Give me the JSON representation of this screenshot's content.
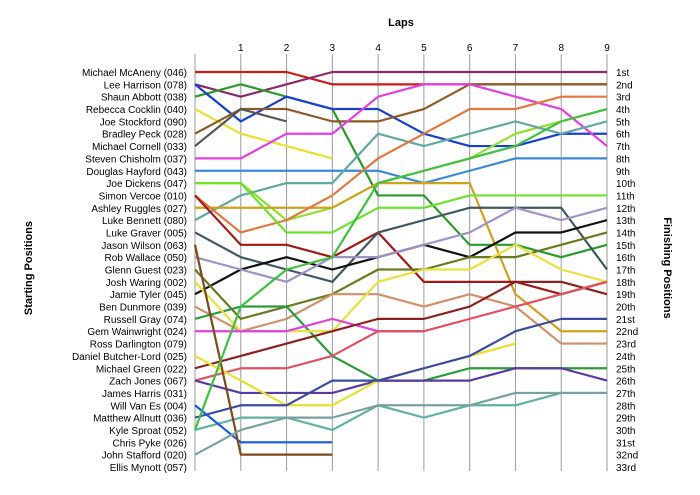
{
  "chart_data": {
    "type": "line",
    "title": "",
    "xlabel": "Laps",
    "ylabel": "Starting Positions",
    "y2label": "Finishing Positions",
    "x": [
      0,
      1,
      2,
      3,
      4,
      5,
      6,
      7,
      8,
      9
    ],
    "xticks": [
      "1",
      "2",
      "3",
      "4",
      "5",
      "6",
      "7",
      "8",
      "9"
    ],
    "xlim": [
      0,
      9
    ],
    "ylim": [
      1,
      33
    ],
    "y_inverted": true,
    "starting_labels": [
      "Michael McAneny (046)",
      "Lee Harrison (078)",
      "Shaun Abbott (038)",
      "Rebecca Cocklin (040)",
      "Joe Stockford (090)",
      "Bradley Peck (028)",
      "Michael Cornell (033)",
      "Steven Chisholm (037)",
      "Douglas Hayford (043)",
      "Joe Dickens (047)",
      "Simon Vercoe (010)",
      "Ashley Ruggles (027)",
      "Luke Bennett (080)",
      "Luke Graver (005)",
      "Jason Wilson (063)",
      "Rob Wallace (050)",
      "Glenn Guest (023)",
      "Josh Waring (002)",
      "Jamie Tyler (045)",
      "Ben Dunmore (039)",
      "Russell Gray (074)",
      "Gem Wainwright (024)",
      "Ross Darlington (079)",
      "Daniel Butcher-Lord (025)",
      "Michael Green (022)",
      "Zach Jones (067)",
      "James Harris (031)",
      "Will Van Es (004)",
      "Matthew Allnutt (036)",
      "Kyle Sproat (052)",
      "Chris Pyke (026)",
      "John Stafford (020)",
      "Ellis Mynott (057)"
    ],
    "finishing_labels": [
      "1st",
      "2nd",
      "3rd",
      "4th",
      "5th",
      "6th",
      "7th",
      "8th",
      "9th",
      "10th",
      "11th",
      "12th",
      "13th",
      "14th",
      "15th",
      "16th",
      "17th",
      "18th",
      "19th",
      "20th",
      "21st",
      "22nd",
      "23rd",
      "24th",
      "25th",
      "26th",
      "27th",
      "28th",
      "29th",
      "30th",
      "31st",
      "32nd",
      "33rd"
    ],
    "series": [
      {
        "color": "#cc1a1a",
        "values": [
          1,
          1,
          1,
          2,
          2,
          2,
          2,
          2,
          2,
          2
        ]
      },
      {
        "color": "#8a2a6b",
        "values": [
          2,
          3,
          2,
          1,
          1,
          1,
          1,
          1,
          1,
          1
        ]
      },
      {
        "color": "#2a9a2a",
        "values": [
          3,
          2,
          3,
          4,
          11,
          11,
          15,
          15,
          16,
          15
        ]
      },
      {
        "color": "#e8e030",
        "values": [
          4,
          6,
          7,
          8,
          null,
          null,
          null,
          null,
          null,
          null
        ]
      },
      {
        "color": "#1a3fcc",
        "values": [
          2,
          5,
          3,
          4,
          4,
          6,
          7,
          7,
          6,
          6
        ]
      },
      {
        "color": "#8a5a2a",
        "values": [
          6,
          4,
          4,
          5,
          5,
          4,
          2,
          2,
          2,
          2
        ]
      },
      {
        "color": "#555555",
        "values": [
          7,
          4,
          5,
          null,
          null,
          null,
          null,
          null,
          null,
          null
        ]
      },
      {
        "color": "#e040e0",
        "values": [
          8,
          8,
          6,
          6,
          3,
          2,
          2,
          3,
          4,
          7
        ]
      },
      {
        "color": "#3a8ad8",
        "values": [
          9,
          9,
          9,
          9,
          9,
          10,
          9,
          8,
          8,
          8
        ]
      },
      {
        "color": "#90e030",
        "values": [
          10,
          10,
          13,
          12,
          10,
          9,
          8,
          6,
          5,
          4
        ]
      },
      {
        "color": "#60a8a0",
        "values": [
          13,
          11,
          10,
          10,
          6,
          7,
          6,
          5,
          6,
          5
        ]
      },
      {
        "color": "#d0a020",
        "values": [
          12,
          12,
          12,
          12,
          10,
          10,
          10,
          19,
          22,
          22
        ]
      },
      {
        "color": "#e07840",
        "values": [
          11,
          14,
          13,
          11,
          8,
          6,
          4,
          4,
          3,
          3
        ]
      },
      {
        "color": "#70e030",
        "values": [
          10,
          10,
          14,
          14,
          12,
          12,
          11,
          11,
          11,
          11
        ]
      },
      {
        "color": "#a01818",
        "values": [
          11,
          15,
          15,
          16,
          14,
          18,
          18,
          18,
          19,
          18
        ]
      },
      {
        "color": "#405860",
        "values": [
          14,
          16,
          17,
          18,
          14,
          13,
          12,
          12,
          12,
          17
        ]
      },
      {
        "color": "#111111",
        "values": [
          19,
          17,
          16,
          17,
          16,
          15,
          16,
          14,
          14,
          13
        ]
      },
      {
        "color": "#a090c8",
        "values": [
          16,
          17,
          18,
          16,
          16,
          15,
          14,
          12,
          13,
          12
        ]
      },
      {
        "color": "#6a7a20",
        "values": [
          17,
          21,
          20,
          19,
          17,
          17,
          16,
          16,
          15,
          14
        ]
      },
      {
        "color": "#d09068",
        "values": [
          20,
          22,
          21,
          19,
          19,
          20,
          19,
          20,
          23,
          23
        ]
      },
      {
        "color": "#2a9a3a",
        "values": [
          21,
          20,
          20,
          24,
          26,
          26,
          25,
          25,
          25,
          25
        ]
      },
      {
        "color": "#e8e040",
        "values": [
          18,
          22,
          22,
          22,
          18,
          17,
          17,
          15,
          17,
          18
        ]
      },
      {
        "color": "#e040e0",
        "values": [
          22,
          22,
          22,
          21,
          22,
          22,
          null,
          null,
          null,
          null
        ]
      },
      {
        "color": "#8a2020",
        "values": [
          25,
          24,
          23,
          22,
          21,
          21,
          20,
          18,
          18,
          19
        ]
      },
      {
        "color": "#e05060",
        "values": [
          26,
          25,
          25,
          24,
          22,
          22,
          21,
          20,
          19,
          18
        ]
      },
      {
        "color": "#5a3aa0",
        "values": [
          26,
          27,
          27,
          27,
          26,
          26,
          26,
          25,
          25,
          26
        ]
      },
      {
        "color": "#e8e030",
        "values": [
          24,
          26,
          28,
          28,
          26,
          25,
          24,
          23,
          null,
          null
        ]
      },
      {
        "color": "#3a4aa0",
        "values": [
          29,
          28,
          28,
          26,
          26,
          25,
          24,
          22,
          21,
          21
        ]
      },
      {
        "color": "#60b0a0",
        "values": [
          30,
          29,
          29,
          30,
          28,
          29,
          28,
          28,
          27,
          27
        ]
      },
      {
        "color": "#1a5ad8",
        "values": [
          28,
          31,
          31,
          31,
          null,
          null,
          null,
          null,
          null,
          null
        ]
      },
      {
        "color": "#7a4a1a",
        "values": [
          15,
          32,
          32,
          32,
          null,
          null,
          null,
          null,
          null,
          null
        ]
      },
      {
        "color": "#7aa0a0",
        "values": [
          32,
          30,
          29,
          29,
          28,
          28,
          28,
          27,
          27,
          27
        ]
      },
      {
        "color": "#40c040",
        "values": [
          30,
          20,
          17,
          16,
          10,
          9,
          8,
          7,
          5,
          4
        ]
      }
    ]
  }
}
